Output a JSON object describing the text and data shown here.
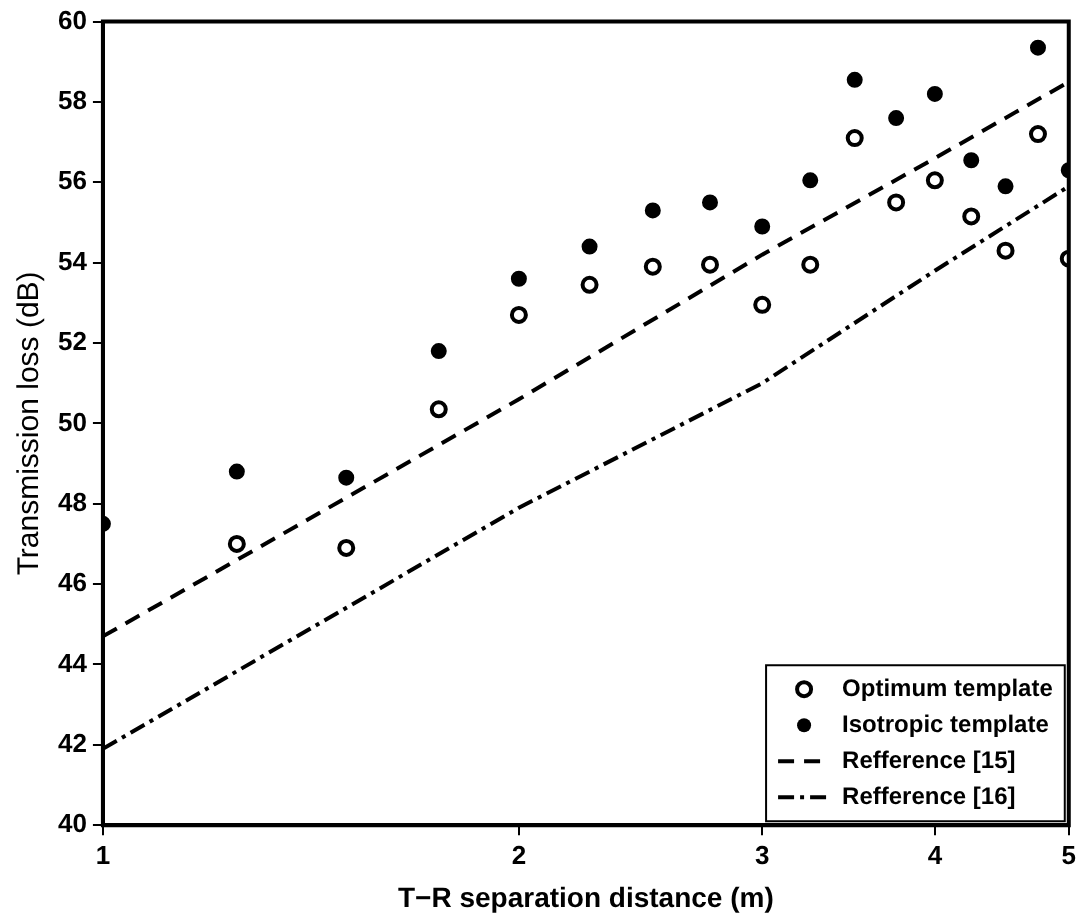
{
  "chart_data": {
    "type": "scatter",
    "xlabel": "T−R separation distance (m)",
    "ylabel": "Transmission loss (dB)",
    "log": "x",
    "xlim": [
      1,
      5
    ],
    "xticks": [
      1,
      2,
      3,
      4,
      5
    ],
    "ylim": [
      40,
      60
    ],
    "yticks": [
      40,
      42,
      44,
      46,
      48,
      50,
      52,
      54,
      56,
      58,
      60
    ],
    "grid": false,
    "legend": "bottom right",
    "series": [
      {
        "name": "Optimum template",
        "marker": "circle",
        "color": "#000000",
        "x": [
          1.25,
          1.5,
          1.75,
          2.0,
          2.25,
          2.5,
          2.75,
          3.0,
          3.25,
          3.5,
          3.75,
          4.0,
          4.25,
          4.5,
          4.75,
          5.0
        ],
        "values": [
          47.0,
          46.9,
          50.35,
          52.7,
          53.45,
          53.9,
          53.95,
          52.95,
          53.95,
          57.1,
          55.5,
          56.05,
          55.15,
          54.3,
          57.2,
          54.1
        ]
      },
      {
        "name": "Isotropic template",
        "marker": "circle",
        "color": "#000000",
        "x": [
          1.0,
          1.25,
          1.5,
          1.75,
          2.0,
          2.25,
          2.5,
          2.75,
          3.0,
          3.25,
          3.5,
          3.75,
          4.0,
          4.25,
          4.5,
          4.75,
          5.0
        ],
        "values": [
          47.5,
          48.8,
          48.65,
          51.8,
          53.6,
          54.4,
          55.3,
          55.5,
          54.9,
          56.05,
          58.55,
          57.6,
          58.2,
          56.55,
          55.9,
          59.35,
          56.3
        ]
      },
      {
        "name": "Refference [15]",
        "type": "line",
        "marker": "none",
        "line_style": "dashed",
        "color": "#000000",
        "x": [
          1,
          2,
          3,
          4,
          5
        ],
        "values": [
          44.7,
          50.6,
          54.2,
          56.6,
          58.5
        ]
      },
      {
        "name": "Refference [16]",
        "type": "line",
        "marker": "none",
        "line_style": "dashdot",
        "color": "#000000",
        "x": [
          1,
          2,
          3,
          4,
          5
        ],
        "values": [
          41.9,
          47.9,
          51.0,
          53.8,
          55.9
        ]
      }
    ]
  }
}
